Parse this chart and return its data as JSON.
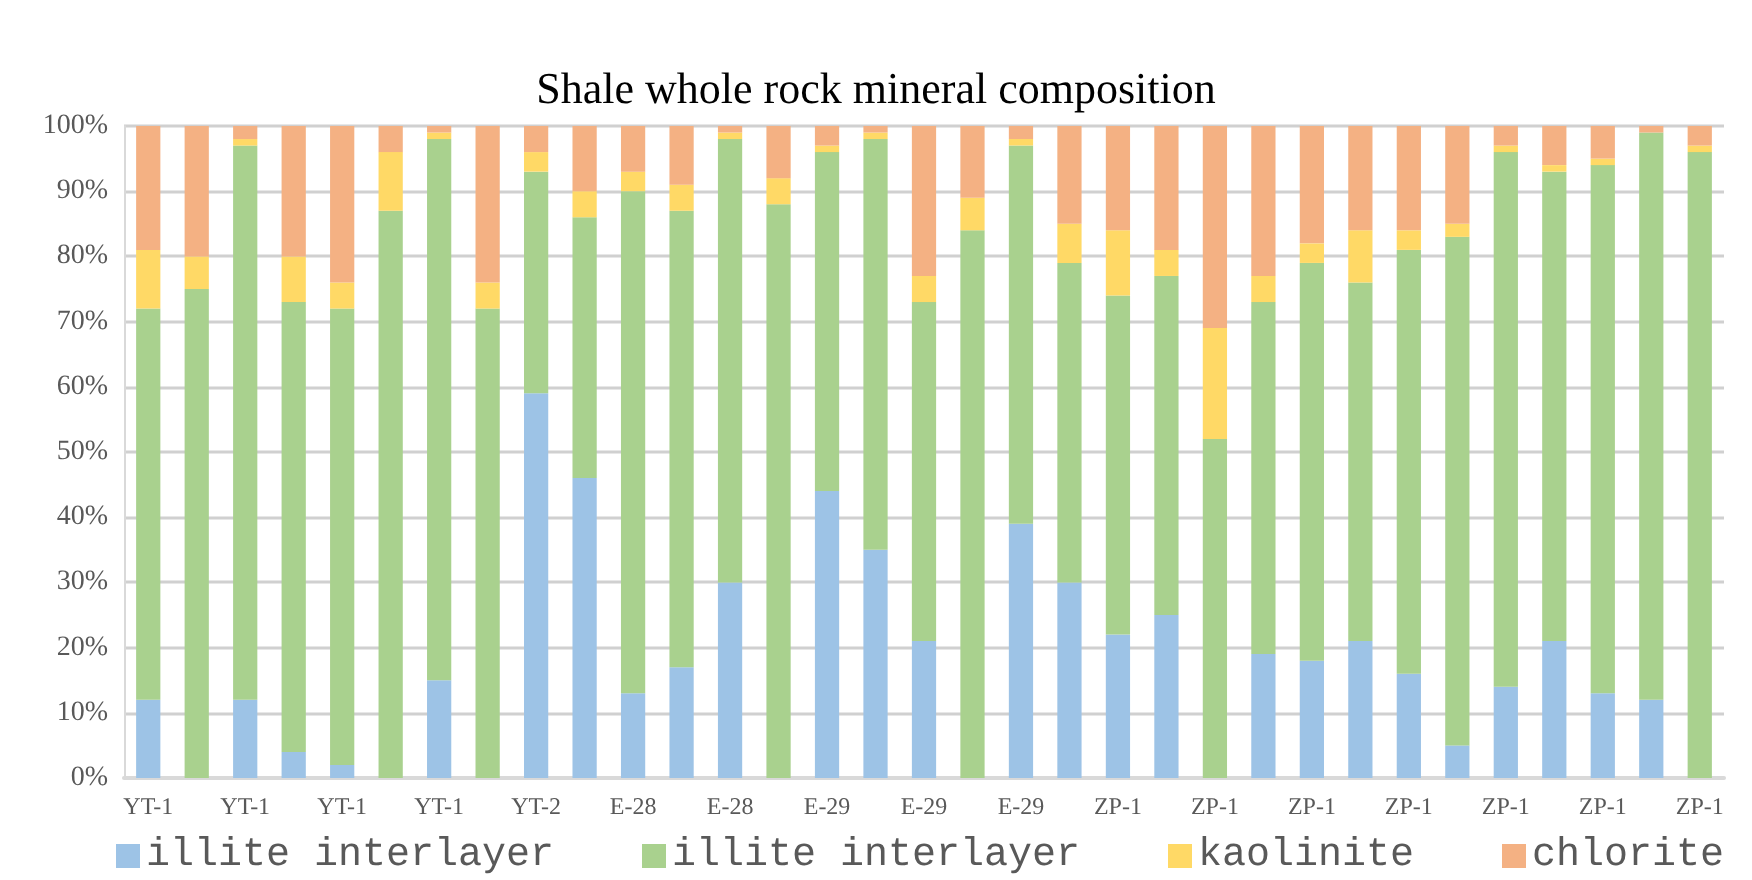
{
  "chart_data": {
    "type": "bar",
    "title": "Shale whole rock mineral composition",
    "stacked": true,
    "grid": "y",
    "legend": "bottom",
    "categories": [
      "YT-1",
      null,
      "YT-1",
      null,
      "YT-1",
      null,
      "YT-1",
      null,
      "YT-2",
      null,
      "E-28",
      null,
      "E-28",
      null,
      "E-29",
      null,
      "E-29",
      null,
      "E-29",
      null,
      "ZP-1",
      null,
      "ZP-1",
      null,
      "ZP-1",
      null,
      "ZP-1",
      null,
      "ZP-1",
      null,
      "ZP-1",
      null,
      "ZP-1"
    ],
    "ylim": [
      0,
      100
    ],
    "yticks": [
      {
        "value": 0,
        "label": "0%"
      },
      {
        "value": 10,
        "label": "10%"
      },
      {
        "value": 20,
        "label": "20%"
      },
      {
        "value": 30,
        "label": "30%"
      },
      {
        "value": 40,
        "label": "40%"
      },
      {
        "value": 50,
        "label": "50%"
      },
      {
        "value": 60,
        "label": "60%"
      },
      {
        "value": 70,
        "label": "70%"
      },
      {
        "value": 80,
        "label": "80%"
      },
      {
        "value": 90,
        "label": "90%"
      },
      {
        "value": 100,
        "label": "100%"
      }
    ],
    "series": [
      {
        "name": "illite interlayer",
        "color": "#9dc3e6",
        "values": [
          12,
          0,
          12,
          4,
          2,
          0,
          15,
          0,
          59,
          46,
          13,
          17,
          30,
          0,
          44,
          35,
          21,
          0,
          39,
          30,
          22,
          25,
          0,
          19,
          18,
          21,
          16,
          5,
          14,
          21,
          13,
          12,
          0
        ]
      },
      {
        "name": "illite interlayer",
        "color": "#a9d18e",
        "values": [
          60,
          75,
          85,
          69,
          70,
          87,
          83,
          72,
          34,
          40,
          77,
          70,
          68,
          88,
          52,
          63,
          52,
          84,
          58,
          49,
          52,
          52,
          52,
          54,
          61,
          55,
          65,
          78,
          82,
          72,
          81,
          87,
          96
        ]
      },
      {
        "name": "kaolinite",
        "color": "#ffd966",
        "values": [
          9,
          5,
          1,
          7,
          4,
          9,
          1,
          4,
          3,
          4,
          3,
          4,
          1,
          4,
          1,
          1,
          4,
          5,
          1,
          6,
          10,
          4,
          17,
          4,
          3,
          8,
          3,
          2,
          1,
          1,
          1,
          0,
          1
        ]
      },
      {
        "name": "chlorite",
        "color": "#f4b183",
        "values": [
          19,
          20,
          2,
          20,
          24,
          4,
          1,
          24,
          4,
          10,
          7,
          9,
          1,
          8,
          3,
          1,
          23,
          11,
          2,
          15,
          16,
          19,
          31,
          23,
          18,
          16,
          16,
          15,
          3,
          6,
          5,
          1,
          3
        ]
      }
    ]
  }
}
